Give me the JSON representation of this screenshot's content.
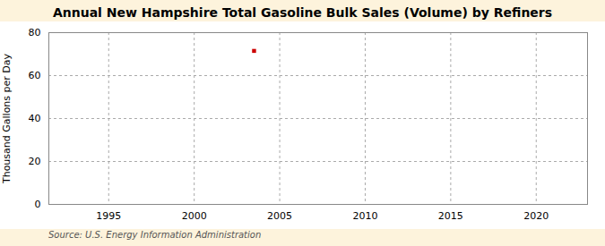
{
  "chart_data": {
    "type": "scatter",
    "title": "Annual New Hampshire Total Gasoline Bulk Sales (Volume) by Refiners",
    "ylabel": "Thousand Gallons per Day",
    "annotation": "Source: U.S. Energy Information Administration",
    "x": [
      2003.5
    ],
    "values": [
      71.5
    ],
    "color": "#cc0000",
    "marker": "square",
    "xlim": [
      1991.5,
      2023
    ],
    "ylim": [
      0,
      80
    ],
    "xticks": [
      1995,
      2000,
      2005,
      2010,
      2015,
      2020
    ],
    "yticks": [
      0,
      20,
      40,
      60,
      80
    ],
    "grid": true
  }
}
